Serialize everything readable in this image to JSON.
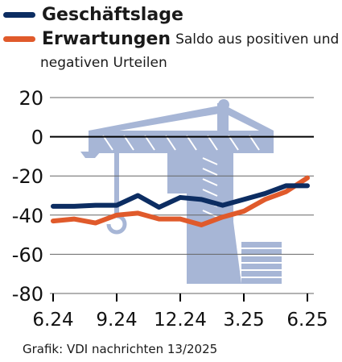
{
  "legend": {
    "series1": "Geschäftslage",
    "series2": "Erwartungen",
    "note_line1": "Saldo aus positiven und",
    "note_line2": "negativen Urteilen"
  },
  "credit": "Grafik: VDI nachrichten 13/2025",
  "colors": {
    "series1": "#0c2d62",
    "series2": "#e05a2b",
    "grid": "#666666",
    "zero_line": "#000000",
    "crane": "#a7b6d6"
  },
  "chart_data": {
    "type": "line",
    "title": "",
    "xlabel": "",
    "ylabel": "",
    "ylim": [
      -80,
      20
    ],
    "yticks": [
      20,
      0,
      -20,
      -40,
      -60,
      -80
    ],
    "xtick_labels": [
      "6.24",
      "9.24",
      "12.24",
      "3.25",
      "6.25"
    ],
    "x": [
      "6.24",
      "7.24",
      "8.24",
      "9.24",
      "10.24",
      "11.24",
      "12.24",
      "1.25",
      "2.25",
      "3.25",
      "4.25",
      "5.25",
      "6.25"
    ],
    "series": [
      {
        "name": "Geschäftslage",
        "values": [
          -35.5,
          -35.5,
          -35,
          -35,
          -30,
          -36,
          -31,
          -32,
          -35,
          -32,
          -29,
          -25,
          -25
        ]
      },
      {
        "name": "Erwartungen",
        "values": [
          -43,
          -42,
          -44,
          -40,
          -39,
          -42,
          -42,
          -45,
          -41,
          -38,
          -32,
          -28,
          -21
        ]
      }
    ],
    "grid": true,
    "background_icon": "construction-crane-icon"
  }
}
